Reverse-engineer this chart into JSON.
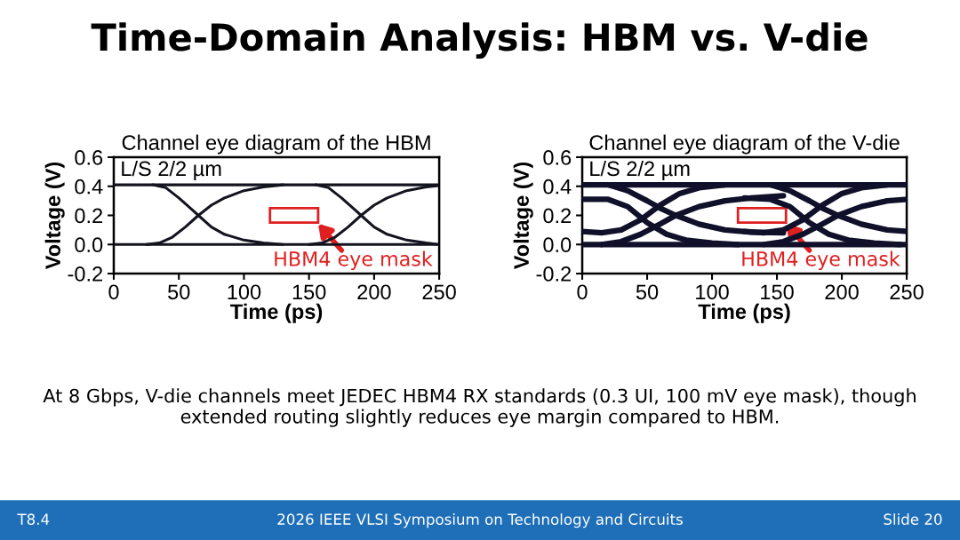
{
  "chart_data": [
    {
      "type": "line",
      "title": "Channel eye diagram of the HBM",
      "xlabel": "Time (ps)",
      "ylabel": "Voltage (V)",
      "xlim": [
        0,
        250
      ],
      "xticks": [
        0,
        50,
        100,
        150,
        200,
        250
      ],
      "ylim": [
        -0.2,
        0.6
      ],
      "yticks": [
        -0.2,
        {
          "value": 0,
          "label": "0.0"
        },
        0.2,
        0.4,
        0.6
      ],
      "grid": false,
      "legend": false,
      "marker": "none",
      "line_style": "solid",
      "series": [
        {
          "color": "#141420",
          "x": [
            0,
            250
          ],
          "values": [
            0.41,
            0.41
          ]
        },
        {
          "color": "#141420",
          "x": [
            0,
            250
          ],
          "values": [
            0.0,
            0.0
          ]
        },
        {
          "color": "#141420",
          "x": [
            25,
            35,
            45,
            55,
            65,
            75,
            85,
            100,
            115,
            130
          ],
          "values": [
            0.0,
            0.01,
            0.05,
            0.12,
            0.2,
            0.27,
            0.32,
            0.37,
            0.395,
            0.41
          ]
        },
        {
          "color": "#141420",
          "x": [
            30,
            40,
            50,
            60,
            65,
            75,
            85,
            100,
            115,
            130
          ],
          "values": [
            0.41,
            0.39,
            0.32,
            0.24,
            0.2,
            0.12,
            0.07,
            0.03,
            0.01,
            0.0
          ]
        },
        {
          "color": "#141420",
          "x": [
            150,
            160,
            170,
            180,
            190,
            200,
            210,
            225,
            240,
            250
          ],
          "values": [
            0.0,
            0.01,
            0.05,
            0.12,
            0.2,
            0.27,
            0.32,
            0.37,
            0.395,
            0.405
          ]
        },
        {
          "color": "#141420",
          "x": [
            155,
            165,
            175,
            185,
            190,
            200,
            210,
            225,
            240,
            250
          ],
          "values": [
            0.41,
            0.39,
            0.32,
            0.24,
            0.2,
            0.12,
            0.07,
            0.03,
            0.01,
            0.0
          ]
        }
      ],
      "annotations": [
        "L/S 2/2 µm",
        "HBM4 eye mask",
        "Time-Domain Analysis: HBM vs. V-die",
        "At 8 Gbps, V-die channels meet JEDEC HBM4 RX standards (0.3 UI, 100 mV eye mask), though extended routing slightly reduces eye margin compared to HBM.",
        "T8.4",
        "2026 IEEE VLSI Symposium on Technology and Circuits",
        "Slide 20"
      ]
    },
    {
      "type": "line",
      "title": "Channel eye diagram of the V-die",
      "xlabel": "Time (ps)",
      "ylabel": "Voltage (V)",
      "xlim": [
        0,
        250
      ],
      "xticks": [
        0,
        50,
        100,
        150,
        200,
        250
      ],
      "ylim": [
        -0.2,
        0.6
      ],
      "yticks": [
        -0.2,
        {
          "value": 0,
          "label": "0.0"
        },
        0.2,
        0.4,
        0.6
      ],
      "grid": false,
      "legend": false,
      "marker": "none",
      "line_style": "solid",
      "series": [
        {
          "color": "#10102a",
          "x": [
            0,
            250
          ],
          "values": [
            0.41,
            0.41
          ]
        },
        {
          "color": "#10102a",
          "x": [
            0,
            250
          ],
          "values": [
            0.0,
            0.0
          ]
        },
        {
          "color": "#10102a",
          "x": [
            15,
            30,
            45,
            60,
            72,
            90,
            110,
            130,
            155
          ],
          "values": [
            0.0,
            0.02,
            0.07,
            0.14,
            0.2,
            0.26,
            0.3,
            0.32,
            0.335
          ]
        },
        {
          "color": "#10102a",
          "x": [
            20,
            35,
            50,
            60,
            72,
            90,
            110,
            130,
            155
          ],
          "values": [
            0.41,
            0.37,
            0.3,
            0.25,
            0.2,
            0.14,
            0.1,
            0.085,
            0.08
          ]
        },
        {
          "color": "#10102a",
          "x": [
            0,
            15,
            30,
            45,
            60,
            75,
            90,
            110
          ],
          "values": [
            0.09,
            0.08,
            0.1,
            0.17,
            0.27,
            0.35,
            0.39,
            0.41
          ]
        },
        {
          "color": "#10102a",
          "x": [
            0,
            20,
            35,
            50,
            65,
            80,
            100,
            120
          ],
          "values": [
            0.31,
            0.31,
            0.26,
            0.15,
            0.07,
            0.03,
            0.01,
            0.0
          ]
        },
        {
          "color": "#10102a",
          "x": [
            140,
            155,
            170,
            185,
            197,
            215,
            235,
            250
          ],
          "values": [
            0.0,
            0.02,
            0.07,
            0.14,
            0.2,
            0.26,
            0.3,
            0.31
          ]
        },
        {
          "color": "#10102a",
          "x": [
            145,
            160,
            175,
            185,
            197,
            215,
            235,
            250
          ],
          "values": [
            0.41,
            0.37,
            0.3,
            0.25,
            0.2,
            0.14,
            0.1,
            0.09
          ]
        },
        {
          "color": "#10102a",
          "x": [
            125,
            140,
            155,
            170,
            185,
            200,
            215,
            235
          ],
          "values": [
            0.09,
            0.08,
            0.1,
            0.17,
            0.27,
            0.35,
            0.39,
            0.41
          ]
        },
        {
          "color": "#10102a",
          "x": [
            125,
            145,
            160,
            175,
            190,
            205,
            225,
            245
          ],
          "values": [
            0.32,
            0.31,
            0.26,
            0.15,
            0.07,
            0.03,
            0.01,
            0.0
          ]
        }
      ],
      "annotations": [
        "L/S 2/2 µm",
        "HBM4 eye mask"
      ]
    }
  ]
}
